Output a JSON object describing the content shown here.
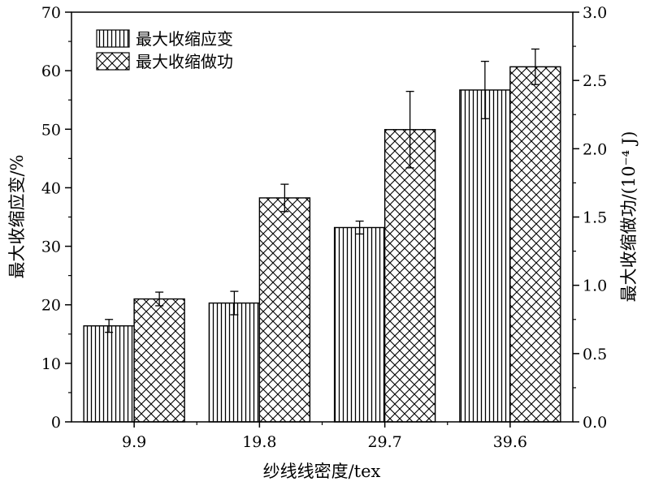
{
  "chart_data": {
    "type": "bar",
    "categories": [
      "9.9",
      "19.8",
      "29.7",
      "39.6"
    ],
    "xlabel": "纱线线密度/tex",
    "ylabel": "最大收缩应变/%",
    "y2label": "最大收缩做功/(10⁻⁴ J)",
    "ylim": [
      0,
      70
    ],
    "y2lim": [
      0,
      3.0
    ],
    "yticks": [
      "0",
      "10",
      "20",
      "30",
      "40",
      "50",
      "60",
      "70"
    ],
    "y2ticks": [
      "0.0",
      "0.5",
      "1.0",
      "1.5",
      "2.0",
      "2.5",
      "3.0"
    ],
    "legend_position": "top-left",
    "grid": false,
    "series": [
      {
        "name": "最大收缩应变",
        "axis": "left",
        "pattern": "vertical-lines",
        "values": [
          16.4,
          20.3,
          33.2,
          56.7
        ],
        "errors": [
          1.1,
          2.0,
          1.1,
          4.9
        ]
      },
      {
        "name": "最大收缩做功",
        "axis": "right",
        "pattern": "crosshatch",
        "values": [
          0.9,
          1.64,
          2.14,
          2.6
        ],
        "errors": [
          0.05,
          0.1,
          0.28,
          0.13
        ]
      }
    ]
  }
}
